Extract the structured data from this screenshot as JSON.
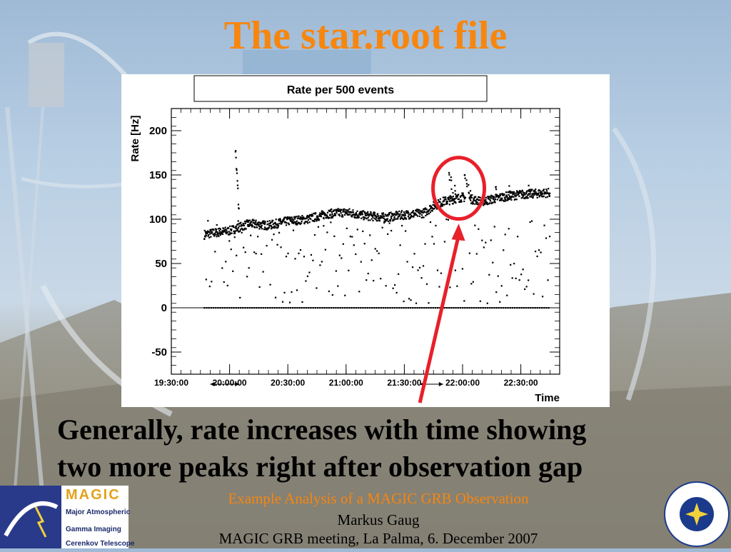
{
  "slide": {
    "title": "The star.root file",
    "caption_line1": "Generally, rate increases with time showing",
    "caption_line2": "two more peaks right after observation gap",
    "footer_line1": "Example Analysis of a MAGIC GRB Observation",
    "footer_line2": "Markus Gaug",
    "footer_line3": "MAGIC GRB meeting, La Palma, 6. December 2007"
  },
  "logos": {
    "magic_word": "MAGIC",
    "magic_line1": "Major Atmospheric",
    "magic_line2": "Gamma  Imaging",
    "magic_line3": "Cerenkov Telescope"
  },
  "colors": {
    "title": "#f7860f",
    "annotation_circle": "#e8202a",
    "annotation_arrow": "#e8202a",
    "data_points": "#000000"
  },
  "chart_data": {
    "type": "scatter",
    "title": "Rate per 500 events",
    "xlabel": "Time",
    "ylabel": "Rate [Hz]",
    "x_ticks": [
      "19:30:00",
      "20:00:00",
      "20:30:00",
      "21:00:00",
      "21:30:00",
      "22:00:00",
      "22:30:00"
    ],
    "x_range": [
      "19:30:00",
      "22:50:00"
    ],
    "y_ticks": [
      -50,
      0,
      50,
      100,
      150,
      200
    ],
    "ylim": [
      -75,
      225
    ],
    "grid": false,
    "observation_start": "19:47:00",
    "observation_end": "22:45:00",
    "gap": [
      "22:01:30",
      "22:03:30"
    ],
    "series": [
      {
        "main_band": [
          [
            "19:47:00",
            83
          ],
          [
            "20:00:00",
            87
          ],
          [
            "20:10:00",
            95
          ],
          [
            "20:20:00",
            93
          ],
          [
            "20:30:00",
            98
          ],
          [
            "20:40:00",
            100
          ],
          [
            "20:50:00",
            106
          ],
          [
            "21:00:00",
            108
          ],
          [
            "21:10:00",
            104
          ],
          [
            "21:20:00",
            102
          ],
          [
            "21:30:00",
            105
          ],
          [
            "21:40:00",
            107
          ],
          [
            "21:45:00",
            115
          ],
          [
            "21:50:00",
            120
          ],
          [
            "22:00:00",
            125
          ],
          [
            "22:10:00",
            120
          ],
          [
            "22:20:00",
            125
          ],
          [
            "22:30:00",
            128
          ],
          [
            "22:45:00",
            130
          ]
        ],
        "spikes": [
          [
            "20:03:00",
            182
          ],
          [
            "20:03:30",
            162
          ],
          [
            "20:04:00",
            148
          ],
          [
            "20:04:30",
            122
          ],
          [
            "21:53:00",
            155
          ],
          [
            "21:54:00",
            148
          ],
          [
            "21:55:00",
            135
          ],
          [
            "21:56:00",
            140
          ],
          [
            "22:01:00",
            155
          ],
          [
            "22:02:00",
            150
          ],
          [
            "22:03:00",
            140
          ],
          [
            "22:04:00",
            135
          ],
          [
            "22:17:00",
            142
          ],
          [
            "22:24:00",
            138
          ],
          [
            "22:34:00",
            140
          ]
        ],
        "zero_rate_start": "19:47:00",
        "zero_rate_end": "22:45:00"
      }
    ],
    "annotation": {
      "circle_center": [
        "21:58:00",
        135
      ],
      "arrow_from": [
        "21:38:00",
        -110
      ],
      "arrow_to": [
        "21:58:00",
        95
      ]
    }
  }
}
